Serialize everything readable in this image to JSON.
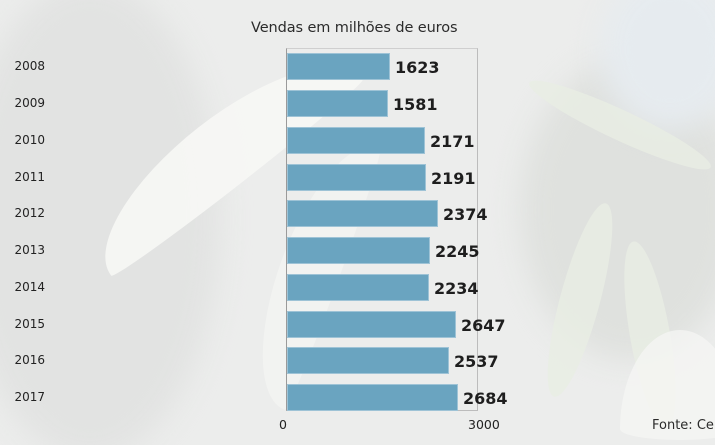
{
  "chart_data": {
    "type": "bar",
    "orientation": "horizontal",
    "title": "Vendas em milhões de euros",
    "xlabel": "",
    "ylabel": "",
    "categories": [
      "2008",
      "2009",
      "2010",
      "2011",
      "2012",
      "2013",
      "2014",
      "2015",
      "2016",
      "2017"
    ],
    "values": [
      1623,
      1581,
      2171,
      2191,
      2374,
      2245,
      2234,
      2647,
      2537,
      2684
    ],
    "xlim": [
      0,
      3000
    ],
    "x_ticks": [
      "0",
      "3000"
    ],
    "grid": false,
    "legend": null,
    "bar_color": "#6aa4c0",
    "source": "Fonte: Cel"
  },
  "labels": {
    "title": "Vendas em milhões de euros",
    "tick_min": "0",
    "tick_max": "3000",
    "source": "Fonte: Cel"
  },
  "rows": [
    {
      "year": "2008",
      "value": "1623"
    },
    {
      "year": "2009",
      "value": "1581"
    },
    {
      "year": "2010",
      "value": "2171"
    },
    {
      "year": "2011",
      "value": "2191"
    },
    {
      "year": "2012",
      "value": "2374"
    },
    {
      "year": "2013",
      "value": "2245"
    },
    {
      "year": "2014",
      "value": "2234"
    },
    {
      "year": "2015",
      "value": "2647"
    },
    {
      "year": "2016",
      "value": "2537"
    },
    {
      "year": "2017",
      "value": "2684"
    }
  ]
}
